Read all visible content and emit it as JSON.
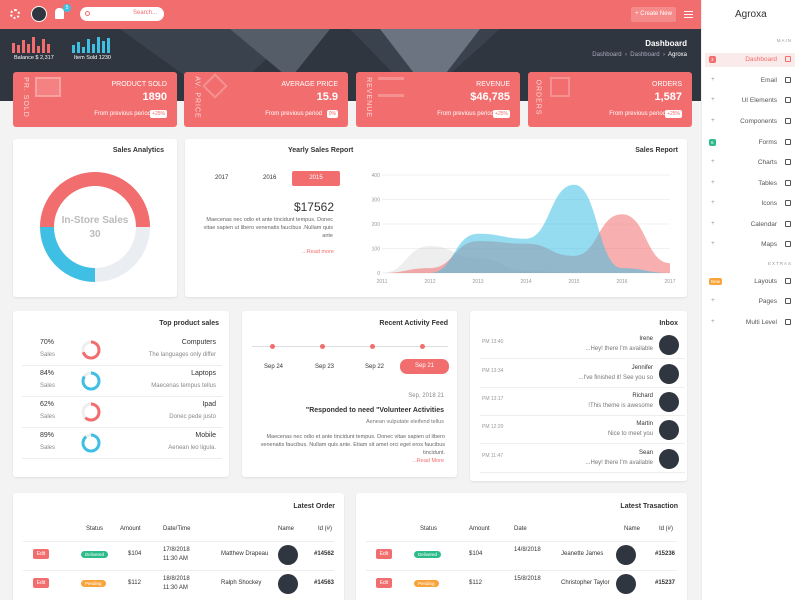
{
  "colors": {
    "primary": "#f26d6d",
    "dark": "#2f3640",
    "cyan": "#3fbfe4",
    "green": "#2dbb8a",
    "orange": "#f7a43b"
  },
  "topbar": {
    "search_placeholder": "Search...",
    "notif_count": "5",
    "create_label": "+ Create New"
  },
  "brand": "Agroxa",
  "header": {
    "title": "Dashboard",
    "breadcrumb": [
      "Dashboard",
      "Dashboard",
      "Agroxa"
    ],
    "balance": "Balance $ 2,317",
    "item_sold": "Item Sold 1230"
  },
  "stats": [
    {
      "vertical": "PR. SOLD",
      "label": "PRODUCT SOLD",
      "value": "1890",
      "foot": "From previous period",
      "badge": "+25%"
    },
    {
      "vertical": "AV. PRICE",
      "label": "AVERAGE PRICE",
      "value": "15.9",
      "foot": "From previous period",
      "badge": "0%"
    },
    {
      "vertical": "REVENUE",
      "label": "REVENUE",
      "value": "$46,785",
      "foot": "From previous period",
      "badge": "+25%"
    },
    {
      "vertical": "ORDERS",
      "label": "ORDERS",
      "value": "1,587",
      "foot": "From previous period",
      "badge": "+25%"
    }
  ],
  "sales_analytics": {
    "title": "Sales Analytics",
    "center_label": "In-Store Sales",
    "center_value": "30"
  },
  "yearly": {
    "title": "Yearly Sales Report",
    "years": [
      "2017",
      "2016",
      "2015"
    ],
    "amount": "$17562",
    "text": "Maecenas nec odio et ante tincidunt tempus. Donec vitae sapien ut libero venenatis faucibus .Nullam quis ante",
    "link": "...Read more"
  },
  "sales_report": {
    "title": "Sales Report"
  },
  "chart_data": {
    "type": "area",
    "x": [
      2011,
      2012,
      2013,
      2014,
      2015,
      2016,
      2017
    ],
    "ylim": [
      0,
      400
    ],
    "yticks": [
      0,
      100,
      200,
      300,
      400
    ],
    "series": [
      {
        "color": "#bdbdbd",
        "values": [
          0,
          110,
          60,
          10,
          0,
          0,
          0
        ]
      },
      {
        "color": "#f26d6d",
        "values": [
          0,
          20,
          130,
          120,
          70,
          240,
          40
        ]
      },
      {
        "color": "#3fbfe4",
        "values": [
          0,
          0,
          160,
          140,
          360,
          20,
          0
        ]
      }
    ]
  },
  "top_products": {
    "title": "Top product sales",
    "items": [
      {
        "pct": "70%",
        "sales": "Sales",
        "name": "Computers",
        "desc": "The languages only differ",
        "color": "#f26d6d",
        "value": 0.7
      },
      {
        "pct": "84%",
        "sales": "Sales",
        "name": "Laptops",
        "desc": "Maecenas tempus tellus",
        "color": "#3fbfe4",
        "value": 0.84
      },
      {
        "pct": "62%",
        "sales": "Sales",
        "name": "Ipad",
        "desc": "Donec pede justo",
        "color": "#f26d6d",
        "value": 0.62
      },
      {
        "pct": "89%",
        "sales": "Sales",
        "name": "Mobile",
        "desc": "Aenean leo ligula.",
        "color": "#3fbfe4",
        "value": 0.89
      }
    ]
  },
  "activity": {
    "title": "Recent Activity Feed",
    "dates": [
      "Sep 24",
      "Sep 23",
      "Sep 22",
      "Sep 21"
    ],
    "date": "Sep, 2018 21",
    "headline": "\"Responded to need \"Volunteer Activities",
    "sub": "Aenean vulputate eleifend tellus",
    "text": "Maecenas nec odio et ante tincidunt tempus. Donec vitae sapien ut libero venenatis faucibus. Nullam quis ante. Etiam sit amet orci eget eros faucibus tincidunt.",
    "link": "...Read More"
  },
  "inbox": {
    "title": "Inbox",
    "items": [
      {
        "time": "PM 13:40",
        "name": "Irene",
        "msg": "...Hey! there I'm available"
      },
      {
        "time": "PM 13:34",
        "name": "Jennifer",
        "msg": "...I've finished it! See you so"
      },
      {
        "time": "PM 13:17",
        "name": "Richard",
        "msg": "!This theme is awesome"
      },
      {
        "time": "PM 12:20",
        "name": "Martin",
        "msg": "Nice to meet you"
      },
      {
        "time": "PM 11:47",
        "name": "Sean",
        "msg": "...Hey! there I'm available"
      }
    ]
  },
  "latest_order": {
    "title": "Latest Order",
    "headers": [
      "Status",
      "Amount",
      "Date/Time",
      "Name",
      "Id (#)"
    ],
    "rows": [
      {
        "edit": "Edit",
        "status": "Delivered",
        "status_color": "#2dbb8a",
        "amount": "$104",
        "date": "17/8/2018",
        "time": "11:30 AM",
        "name": "Matthew Drapeau",
        "id": "#14562"
      },
      {
        "edit": "Edit",
        "status": "Pending",
        "status_color": "#f7a43b",
        "amount": "$112",
        "date": "18/8/2018",
        "time": "11:30 AM",
        "name": "Ralph Shockey",
        "id": "#14563"
      }
    ]
  },
  "latest_tx": {
    "title": "Latest Trasaction",
    "headers": [
      "Status",
      "Amount",
      "Date",
      "Name",
      "Id (#)"
    ],
    "rows": [
      {
        "edit": "Edit",
        "status": "Delivered",
        "status_color": "#2dbb8a",
        "amount": "$104",
        "date": "14/8/2018",
        "name": "Jeanette James",
        "id": "#15236"
      },
      {
        "edit": "Edit",
        "status": "Pending",
        "status_color": "#f7a43b",
        "amount": "$112",
        "date": "15/8/2018",
        "name": "Christopher Taylor",
        "id": "#15237"
      }
    ]
  },
  "sidebar": {
    "main_label": "MAIN",
    "extras_label": "EXTRAS",
    "items": [
      {
        "label": "Dashboard",
        "icon": "home-icon",
        "active": true,
        "badge": "3"
      },
      {
        "label": "Email",
        "icon": "mail-icon"
      },
      {
        "label": "UI Elements",
        "icon": "layers-icon"
      },
      {
        "label": "Components",
        "icon": "box-icon"
      },
      {
        "label": "Forms",
        "icon": "form-icon",
        "badge": "6"
      },
      {
        "label": "Charts",
        "icon": "chart-icon"
      },
      {
        "label": "Tables",
        "icon": "table-icon"
      },
      {
        "label": "Icons",
        "icon": "star-icon"
      },
      {
        "label": "Calendar",
        "icon": "calendar-icon"
      },
      {
        "label": "Maps",
        "icon": "map-pin-icon"
      },
      {
        "label": "Layouts",
        "icon": "layout-icon",
        "badge": "New"
      },
      {
        "label": "Pages",
        "icon": "page-icon"
      },
      {
        "label": "Multi Level",
        "icon": "list-icon"
      }
    ]
  }
}
